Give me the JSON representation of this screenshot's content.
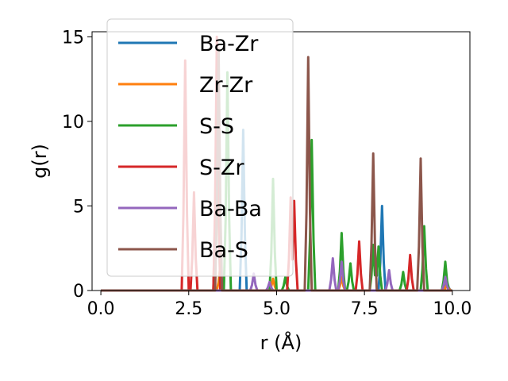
{
  "chart_data": {
    "type": "line",
    "xlabel": "r (Å)",
    "ylabel": "g(r)",
    "xlim": [
      -0.25,
      10.5
    ],
    "ylim": [
      0,
      15.3
    ],
    "xticks": [
      0.0,
      2.5,
      5.0,
      7.5,
      10.0
    ],
    "xtick_labels": [
      "0.0",
      "2.5",
      "5.0",
      "7.5",
      "10.0"
    ],
    "yticks": [
      0,
      5,
      10,
      15
    ],
    "ytick_labels": [
      "0",
      "5",
      "10",
      "15"
    ],
    "grid": false,
    "legend_position": "upper-left",
    "series": [
      {
        "name": "Ba-Zr",
        "color": "#1f77b4",
        "peaks": [
          [
            4.05,
            9.5
          ],
          [
            8.0,
            5.0
          ],
          [
            9.85,
            0.5
          ]
        ]
      },
      {
        "name": "Zr-Zr",
        "color": "#ff7f0e",
        "peaks": [
          [
            3.4,
            1.5
          ],
          [
            4.9,
            0.7
          ],
          [
            6.85,
            0.8
          ],
          [
            9.85,
            0.4
          ]
        ]
      },
      {
        "name": "S-S",
        "color": "#2ca02c",
        "peaks": [
          [
            3.3,
            12.8
          ],
          [
            3.6,
            12.9
          ],
          [
            4.9,
            6.6
          ],
          [
            5.25,
            0.8
          ],
          [
            6.0,
            8.9
          ],
          [
            6.85,
            3.4
          ],
          [
            7.1,
            1.6
          ],
          [
            7.75,
            2.7
          ],
          [
            7.9,
            2.6
          ],
          [
            8.6,
            1.1
          ],
          [
            9.2,
            3.8
          ],
          [
            9.8,
            1.7
          ]
        ]
      },
      {
        "name": "S-Zr",
        "color": "#d62728",
        "peaks": [
          [
            2.4,
            13.6
          ],
          [
            2.65,
            5.8
          ],
          [
            3.3,
            15.0
          ],
          [
            5.4,
            5.5
          ],
          [
            5.5,
            5.3
          ],
          [
            7.35,
            2.9
          ],
          [
            8.8,
            2.1
          ]
        ]
      },
      {
        "name": "Ba-Ba",
        "color": "#9467bd",
        "peaks": [
          [
            4.35,
            1.0
          ],
          [
            4.8,
            0.5
          ],
          [
            6.6,
            1.9
          ],
          [
            6.85,
            1.7
          ],
          [
            8.2,
            1.2
          ],
          [
            9.8,
            0.8
          ]
        ]
      },
      {
        "name": "Ba-S",
        "color": "#8c564b",
        "peaks": [
          [
            3.35,
            14.3
          ],
          [
            5.9,
            13.8
          ],
          [
            7.75,
            8.1
          ],
          [
            9.1,
            7.8
          ]
        ]
      }
    ]
  }
}
